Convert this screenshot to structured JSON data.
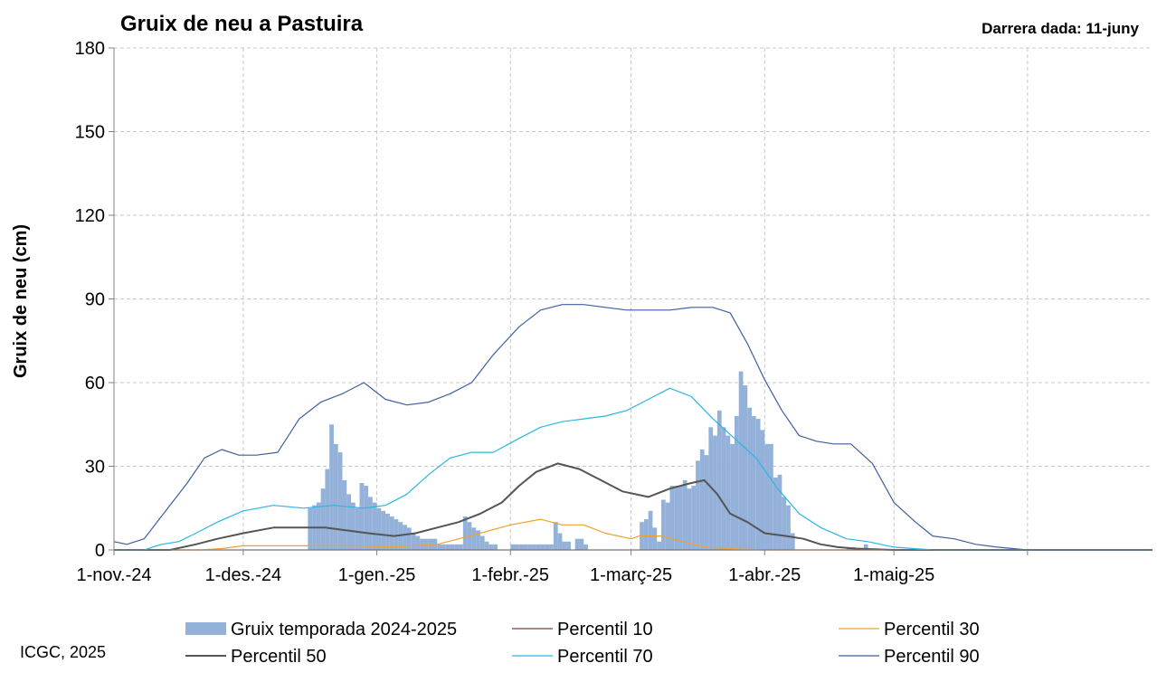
{
  "chart_data": {
    "type": "bar",
    "title": "Gruix de neu a Pastuira",
    "subtitle": "Darrera dada: 11-juny",
    "ylabel": "Gruix de neu (cm)",
    "xlabel": "",
    "ylim": [
      0,
      180
    ],
    "yticks": [
      0,
      30,
      60,
      90,
      120,
      150,
      180
    ],
    "x_start": "2024-11-01",
    "x_end": "2025-06-30",
    "xticks": [
      {
        "date": "2024-11-01",
        "label": "1-nov.-24"
      },
      {
        "date": "2024-12-01",
        "label": "1-des.-24"
      },
      {
        "date": "2025-01-01",
        "label": "1-gen.-25"
      },
      {
        "date": "2025-02-01",
        "label": "1-febr.-25"
      },
      {
        "date": "2025-03-01",
        "label": "1-març-25"
      },
      {
        "date": "2025-04-01",
        "label": "1-abr.-25"
      },
      {
        "date": "2025-05-01",
        "label": "1-maig-25"
      }
    ],
    "vgrid_dates": [
      "2024-12-01",
      "2025-01-01",
      "2025-02-01",
      "2025-03-01",
      "2025-04-01",
      "2025-05-01",
      "2025-06-01"
    ],
    "grid": true,
    "credit": "ICGC, 2025",
    "series": [
      {
        "name": "Gruix temporada 2024-2025",
        "kind": "bar",
        "color": "#94b1d9",
        "points": [
          [
            "2024-12-16",
            15
          ],
          [
            "2024-12-17",
            16
          ],
          [
            "2024-12-18",
            17
          ],
          [
            "2024-12-19",
            22
          ],
          [
            "2024-12-20",
            29
          ],
          [
            "2024-12-21",
            45
          ],
          [
            "2024-12-22",
            38
          ],
          [
            "2024-12-23",
            35
          ],
          [
            "2024-12-24",
            25
          ],
          [
            "2024-12-25",
            20
          ],
          [
            "2024-12-26",
            17
          ],
          [
            "2024-12-27",
            15
          ],
          [
            "2024-12-28",
            24
          ],
          [
            "2024-12-29",
            23
          ],
          [
            "2024-12-30",
            19
          ],
          [
            "2024-12-31",
            17
          ],
          [
            "2025-01-01",
            15
          ],
          [
            "2025-01-02",
            14
          ],
          [
            "2025-01-03",
            13
          ],
          [
            "2025-01-04",
            12
          ],
          [
            "2025-01-05",
            11
          ],
          [
            "2025-01-06",
            10
          ],
          [
            "2025-01-07",
            9
          ],
          [
            "2025-01-08",
            8
          ],
          [
            "2025-01-09",
            6
          ],
          [
            "2025-01-10",
            5
          ],
          [
            "2025-01-11",
            4
          ],
          [
            "2025-01-12",
            4
          ],
          [
            "2025-01-13",
            4
          ],
          [
            "2025-01-14",
            4
          ],
          [
            "2025-01-15",
            2
          ],
          [
            "2025-01-16",
            2
          ],
          [
            "2025-01-17",
            2
          ],
          [
            "2025-01-18",
            2
          ],
          [
            "2025-01-19",
            2
          ],
          [
            "2025-01-20",
            2
          ],
          [
            "2025-01-21",
            12
          ],
          [
            "2025-01-22",
            10
          ],
          [
            "2025-01-23",
            8
          ],
          [
            "2025-01-24",
            7
          ],
          [
            "2025-01-25",
            5
          ],
          [
            "2025-01-26",
            3
          ],
          [
            "2025-01-27",
            2
          ],
          [
            "2025-01-28",
            2
          ],
          [
            "2025-02-01",
            2
          ],
          [
            "2025-02-02",
            2
          ],
          [
            "2025-02-03",
            2
          ],
          [
            "2025-02-04",
            2
          ],
          [
            "2025-02-05",
            2
          ],
          [
            "2025-02-06",
            2
          ],
          [
            "2025-02-07",
            2
          ],
          [
            "2025-02-08",
            2
          ],
          [
            "2025-02-09",
            2
          ],
          [
            "2025-02-10",
            2
          ],
          [
            "2025-02-11",
            10
          ],
          [
            "2025-02-12",
            6
          ],
          [
            "2025-02-13",
            3
          ],
          [
            "2025-02-14",
            3
          ],
          [
            "2025-02-16",
            4
          ],
          [
            "2025-02-17",
            4
          ],
          [
            "2025-02-18",
            2
          ],
          [
            "2025-03-03",
            10
          ],
          [
            "2025-03-04",
            11
          ],
          [
            "2025-03-05",
            14
          ],
          [
            "2025-03-06",
            8
          ],
          [
            "2025-03-07",
            3
          ],
          [
            "2025-03-08",
            18
          ],
          [
            "2025-03-09",
            17
          ],
          [
            "2025-03-10",
            23
          ],
          [
            "2025-03-11",
            23
          ],
          [
            "2025-03-12",
            23
          ],
          [
            "2025-03-13",
            25
          ],
          [
            "2025-03-14",
            22
          ],
          [
            "2025-03-15",
            23
          ],
          [
            "2025-03-16",
            32
          ],
          [
            "2025-03-17",
            36
          ],
          [
            "2025-03-18",
            34
          ],
          [
            "2025-03-19",
            44
          ],
          [
            "2025-03-20",
            41
          ],
          [
            "2025-03-21",
            50
          ],
          [
            "2025-03-22",
            44
          ],
          [
            "2025-03-23",
            41
          ],
          [
            "2025-03-24",
            38
          ],
          [
            "2025-03-25",
            48
          ],
          [
            "2025-03-26",
            64
          ],
          [
            "2025-03-27",
            59
          ],
          [
            "2025-03-28",
            51
          ],
          [
            "2025-03-29",
            48
          ],
          [
            "2025-03-30",
            47
          ],
          [
            "2025-03-31",
            43
          ],
          [
            "2025-04-01",
            38
          ],
          [
            "2025-04-02",
            38
          ],
          [
            "2025-04-03",
            26
          ],
          [
            "2025-04-04",
            27
          ],
          [
            "2025-04-05",
            19
          ],
          [
            "2025-04-06",
            16
          ],
          [
            "2025-04-07",
            6
          ],
          [
            "2025-04-20",
            1
          ],
          [
            "2025-04-21",
            1
          ],
          [
            "2025-04-24",
            2
          ]
        ]
      },
      {
        "name": "Percentil 10",
        "kind": "line",
        "color": "#8b3a2e",
        "points": [
          [
            "2024-11-01",
            0
          ],
          [
            "2025-06-30",
            0
          ]
        ]
      },
      {
        "name": "Percentil 30",
        "kind": "line",
        "color": "#f0a030",
        "points": [
          [
            "2024-11-01",
            0
          ],
          [
            "2024-11-21",
            0
          ],
          [
            "2024-11-26",
            0.5
          ],
          [
            "2024-12-01",
            1.5
          ],
          [
            "2024-12-15",
            1.5
          ],
          [
            "2024-12-25",
            1.5
          ],
          [
            "2025-01-05",
            1
          ],
          [
            "2025-01-15",
            2
          ],
          [
            "2025-01-20",
            4
          ],
          [
            "2025-01-25",
            6
          ],
          [
            "2025-02-01",
            9
          ],
          [
            "2025-02-08",
            11
          ],
          [
            "2025-02-13",
            9
          ],
          [
            "2025-02-18",
            9
          ],
          [
            "2025-02-23",
            6
          ],
          [
            "2025-03-01",
            4
          ],
          [
            "2025-03-03",
            5
          ],
          [
            "2025-03-08",
            5
          ],
          [
            "2025-03-13",
            3
          ],
          [
            "2025-03-18",
            1
          ],
          [
            "2025-03-23",
            0.5
          ],
          [
            "2025-04-01",
            0
          ],
          [
            "2025-06-30",
            0
          ]
        ]
      },
      {
        "name": "Percentil 50",
        "kind": "line",
        "color": "#555555",
        "points": [
          [
            "2024-11-01",
            0
          ],
          [
            "2024-11-14",
            0
          ],
          [
            "2024-11-20",
            2
          ],
          [
            "2024-11-25",
            4
          ],
          [
            "2024-12-01",
            6
          ],
          [
            "2024-12-08",
            8
          ],
          [
            "2024-12-15",
            8
          ],
          [
            "2024-12-20",
            8
          ],
          [
            "2024-12-25",
            7
          ],
          [
            "2024-12-30",
            6
          ],
          [
            "2025-01-05",
            5
          ],
          [
            "2025-01-10",
            6
          ],
          [
            "2025-01-15",
            8
          ],
          [
            "2025-01-20",
            10
          ],
          [
            "2025-01-25",
            13
          ],
          [
            "2025-01-30",
            17
          ],
          [
            "2025-02-03",
            23
          ],
          [
            "2025-02-07",
            28
          ],
          [
            "2025-02-12",
            31
          ],
          [
            "2025-02-17",
            29
          ],
          [
            "2025-02-22",
            25
          ],
          [
            "2025-02-27",
            21
          ],
          [
            "2025-03-05",
            19
          ],
          [
            "2025-03-10",
            22
          ],
          [
            "2025-03-15",
            24
          ],
          [
            "2025-03-18",
            25
          ],
          [
            "2025-03-21",
            20
          ],
          [
            "2025-03-24",
            13
          ],
          [
            "2025-03-28",
            10
          ],
          [
            "2025-04-01",
            6
          ],
          [
            "2025-04-06",
            5
          ],
          [
            "2025-04-10",
            4
          ],
          [
            "2025-04-14",
            2
          ],
          [
            "2025-04-18",
            1
          ],
          [
            "2025-04-22",
            0.5
          ],
          [
            "2025-05-01",
            0
          ],
          [
            "2025-06-30",
            0
          ]
        ]
      },
      {
        "name": "Percentil 70",
        "kind": "line",
        "color": "#29b7df",
        "points": [
          [
            "2024-11-01",
            0
          ],
          [
            "2024-11-08",
            0
          ],
          [
            "2024-11-12",
            2
          ],
          [
            "2024-11-16",
            3
          ],
          [
            "2024-11-20",
            6
          ],
          [
            "2024-11-25",
            10
          ],
          [
            "2024-12-01",
            14
          ],
          [
            "2024-12-08",
            16
          ],
          [
            "2024-12-15",
            15
          ],
          [
            "2024-12-22",
            16
          ],
          [
            "2024-12-29",
            15
          ],
          [
            "2025-01-03",
            16
          ],
          [
            "2025-01-08",
            20
          ],
          [
            "2025-01-13",
            27
          ],
          [
            "2025-01-18",
            33
          ],
          [
            "2025-01-23",
            35
          ],
          [
            "2025-01-28",
            35
          ],
          [
            "2025-02-03",
            40
          ],
          [
            "2025-02-08",
            44
          ],
          [
            "2025-02-13",
            46
          ],
          [
            "2025-02-18",
            47
          ],
          [
            "2025-02-23",
            48
          ],
          [
            "2025-02-28",
            50
          ],
          [
            "2025-03-05",
            54
          ],
          [
            "2025-03-10",
            58
          ],
          [
            "2025-03-15",
            55
          ],
          [
            "2025-03-20",
            47
          ],
          [
            "2025-03-25",
            40
          ],
          [
            "2025-03-30",
            33
          ],
          [
            "2025-04-04",
            22
          ],
          [
            "2025-04-09",
            13
          ],
          [
            "2025-04-14",
            8
          ],
          [
            "2025-04-20",
            4
          ],
          [
            "2025-04-25",
            3
          ],
          [
            "2025-05-01",
            1
          ],
          [
            "2025-05-10",
            0
          ],
          [
            "2025-06-30",
            0
          ]
        ]
      },
      {
        "name": "Percentil 90",
        "kind": "line",
        "color": "#3f5f9e",
        "points": [
          [
            "2024-11-01",
            3
          ],
          [
            "2024-11-04",
            2
          ],
          [
            "2024-11-08",
            4
          ],
          [
            "2024-11-13",
            14
          ],
          [
            "2024-11-18",
            24
          ],
          [
            "2024-11-22",
            33
          ],
          [
            "2024-11-26",
            36
          ],
          [
            "2024-11-30",
            34
          ],
          [
            "2024-12-04",
            34
          ],
          [
            "2024-12-09",
            35
          ],
          [
            "2024-12-14",
            47
          ],
          [
            "2024-12-19",
            53
          ],
          [
            "2024-12-24",
            56
          ],
          [
            "2024-12-29",
            60
          ],
          [
            "2025-01-03",
            54
          ],
          [
            "2025-01-08",
            52
          ],
          [
            "2025-01-13",
            53
          ],
          [
            "2025-01-18",
            56
          ],
          [
            "2025-01-23",
            60
          ],
          [
            "2025-01-28",
            70
          ],
          [
            "2025-02-03",
            80
          ],
          [
            "2025-02-08",
            86
          ],
          [
            "2025-02-13",
            88
          ],
          [
            "2025-02-18",
            88
          ],
          [
            "2025-02-23",
            87
          ],
          [
            "2025-02-28",
            86
          ],
          [
            "2025-03-05",
            86
          ],
          [
            "2025-03-10",
            86
          ],
          [
            "2025-03-15",
            87
          ],
          [
            "2025-03-20",
            87
          ],
          [
            "2025-03-24",
            85
          ],
          [
            "2025-03-28",
            74
          ],
          [
            "2025-04-01",
            61
          ],
          [
            "2025-04-05",
            50
          ],
          [
            "2025-04-09",
            41
          ],
          [
            "2025-04-13",
            39
          ],
          [
            "2025-04-17",
            38
          ],
          [
            "2025-04-21",
            38
          ],
          [
            "2025-04-26",
            31
          ],
          [
            "2025-05-01",
            17
          ],
          [
            "2025-05-06",
            10
          ],
          [
            "2025-05-10",
            5
          ],
          [
            "2025-05-15",
            4
          ],
          [
            "2025-05-20",
            2
          ],
          [
            "2025-05-25",
            1
          ],
          [
            "2025-06-01",
            0
          ],
          [
            "2025-06-30",
            0
          ]
        ]
      }
    ],
    "legend": {
      "placement": "bottom",
      "items": [
        {
          "label": "Gruix temporada 2024-2025",
          "series": 0
        },
        {
          "label": "Percentil 10",
          "series": 1
        },
        {
          "label": "Percentil 30",
          "series": 2
        },
        {
          "label": "Percentil 50",
          "series": 3
        },
        {
          "label": "Percentil 70",
          "series": 4
        },
        {
          "label": "Percentil 90",
          "series": 5
        }
      ]
    }
  }
}
